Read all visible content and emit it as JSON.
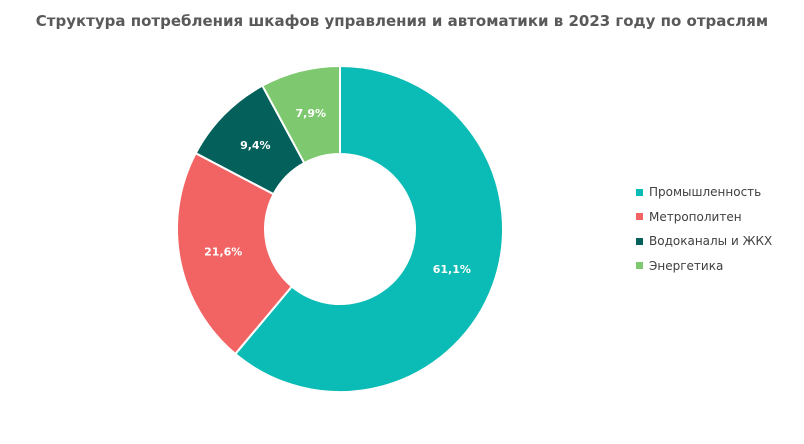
{
  "chart_data": {
    "type": "pie",
    "title": "Структура потребления шкафов управления и автоматики в 2023 году по отраслям",
    "categories": [
      "Промышленность",
      "Метрополитен",
      "Водоканалы  и ЖКХ",
      "Энергетика"
    ],
    "values": [
      61.1,
      21.6,
      9.4,
      7.9
    ],
    "data_labels": [
      "61,1%",
      "21,6%",
      "9,4%",
      "7,9%"
    ],
    "colors": [
      "#0bbbb5",
      "#f26464",
      "#03605a",
      "#7ec96f"
    ],
    "donut": true,
    "legend_position": "right"
  }
}
